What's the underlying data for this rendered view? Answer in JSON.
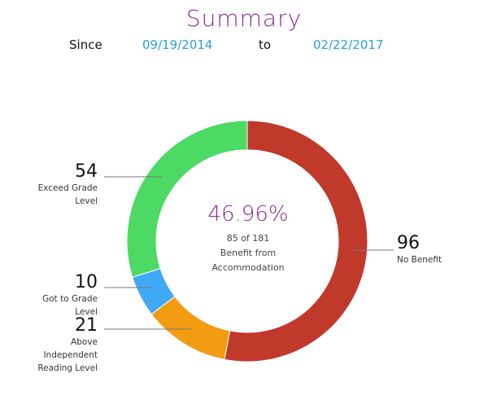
{
  "header": {
    "title": "Summary",
    "since_label": "Since",
    "start_date": "09/19/2014",
    "to_label": "to",
    "end_date": "02/22/2017"
  },
  "center": {
    "percent": "46.96%",
    "count": "85 of 181",
    "label_line1": "Benefit from",
    "label_line2": "Accommodation"
  },
  "chart_data": {
    "type": "pie",
    "total": 181,
    "slices": [
      {
        "name": "No Benefit",
        "value": 96,
        "color": "#c0392b"
      },
      {
        "name": "Above Independent Reading Level",
        "value": 21,
        "color": "#f39c12"
      },
      {
        "name": "Got to Grade Level",
        "value": 10,
        "color": "#3fa9f5"
      },
      {
        "name": "Exceed Grade Level",
        "value": 54,
        "color": "#4cd964"
      }
    ]
  },
  "callouts": {
    "exceed": {
      "value": "54",
      "line1": "Exceed Grade",
      "line2": "Level"
    },
    "got": {
      "value": "10",
      "line1": "Got to Grade",
      "line2": "Level"
    },
    "above": {
      "value": "21",
      "line1": "Above",
      "line2": "Independent",
      "line3": "Reading Level"
    },
    "nobenefit": {
      "value": "96",
      "line1": "No Benefit"
    }
  }
}
